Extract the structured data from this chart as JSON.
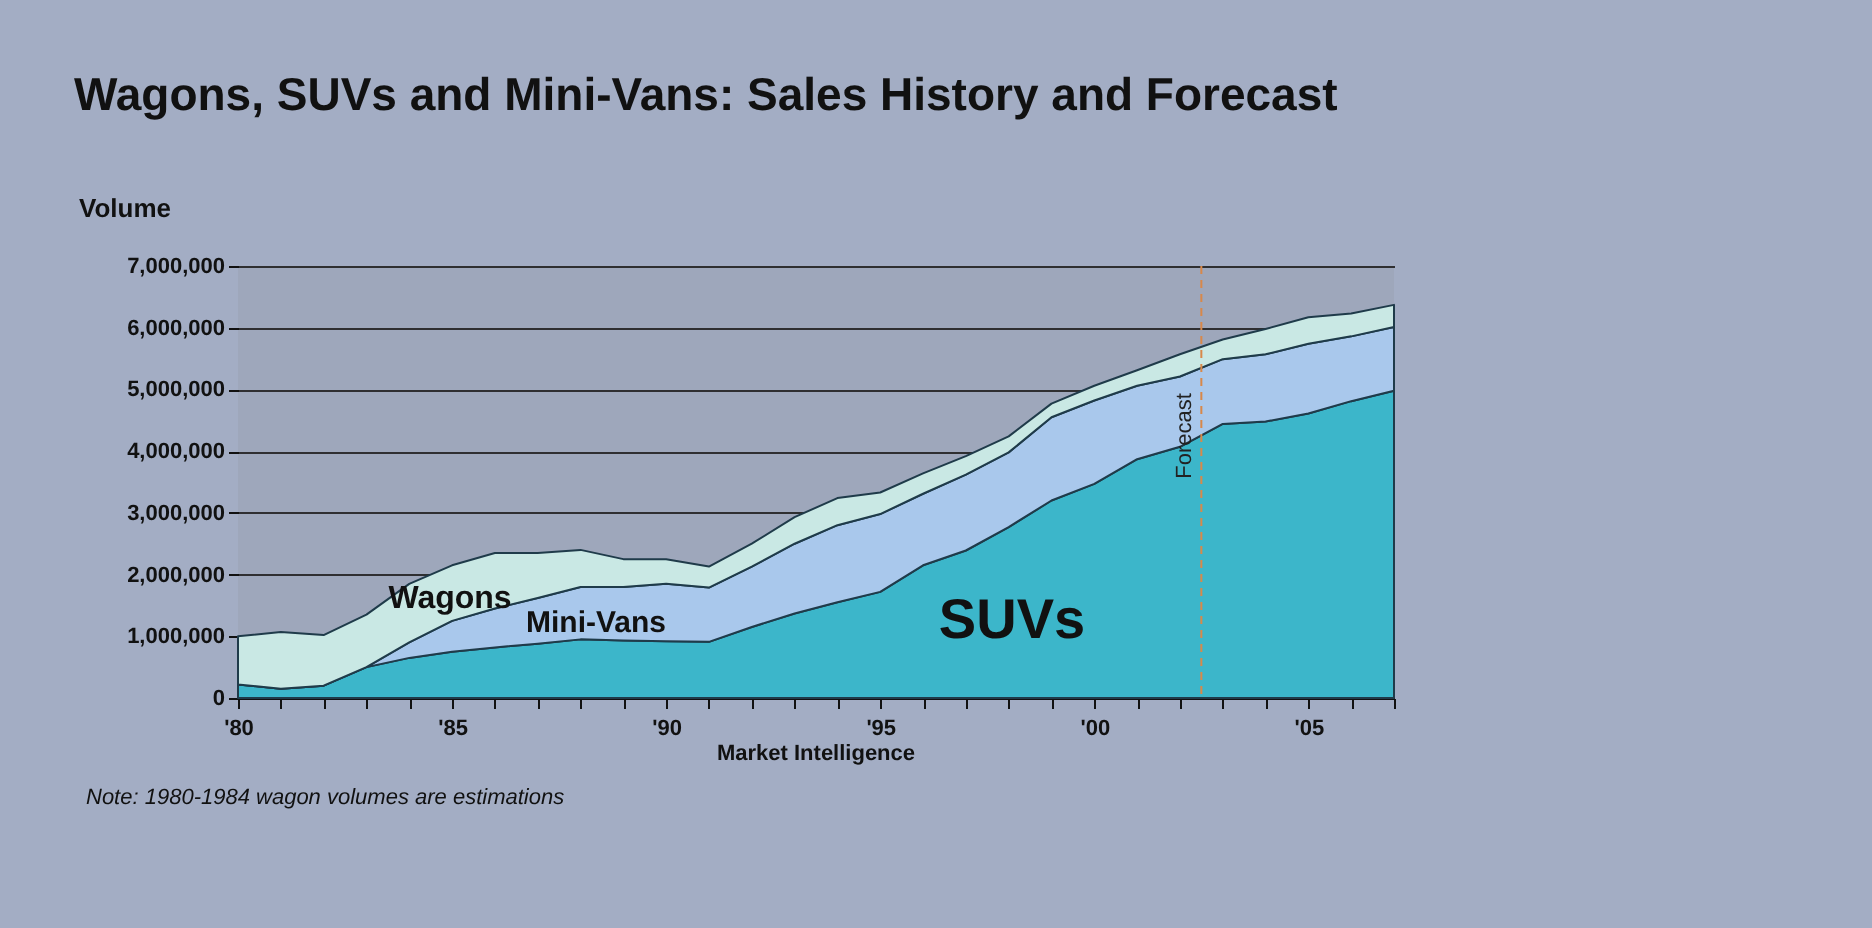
{
  "chart_data": {
    "type": "area",
    "stacked": true,
    "title": "Wagons, SUVs and Mini-Vans: Sales History and Forecast",
    "ylabel": "Volume",
    "x": [
      1980,
      1981,
      1982,
      1983,
      1984,
      1985,
      1986,
      1987,
      1988,
      1989,
      1990,
      1991,
      1992,
      1993,
      1994,
      1995,
      1996,
      1997,
      1998,
      1999,
      2000,
      2001,
      2002,
      2003,
      2004,
      2005,
      2006,
      2007
    ],
    "series": [
      {
        "name": "SUVs",
        "color": "#3cb6ca",
        "values": [
          220000,
          150000,
          200000,
          500000,
          650000,
          750000,
          820000,
          880000,
          950000,
          930000,
          920000,
          910000,
          1150000,
          1370000,
          1550000,
          1720000,
          2150000,
          2390000,
          2770000,
          3200000,
          3470000,
          3870000,
          4070000,
          4440000,
          4480000,
          4610000,
          4810000,
          4980000
        ]
      },
      {
        "name": "Mini-Vans",
        "color": "#a9c8ec",
        "values": [
          0,
          0,
          0,
          0,
          250000,
          500000,
          630000,
          740000,
          850000,
          870000,
          930000,
          880000,
          980000,
          1130000,
          1250000,
          1260000,
          1160000,
          1230000,
          1210000,
          1350000,
          1350000,
          1190000,
          1140000,
          1050000,
          1090000,
          1130000,
          1050000,
          1030000
        ]
      },
      {
        "name": "Wagons",
        "color": "#c9e8e4",
        "values": [
          780000,
          920000,
          820000,
          850000,
          950000,
          900000,
          900000,
          730000,
          600000,
          450000,
          400000,
          340000,
          370000,
          430000,
          440000,
          350000,
          330000,
          300000,
          260000,
          220000,
          240000,
          250000,
          360000,
          320000,
          410000,
          430000,
          370000,
          360000
        ]
      }
    ],
    "xlim": [
      1980,
      2007
    ],
    "xticks": [
      {
        "value": 1980,
        "label": "'80"
      },
      {
        "value": 1981,
        "label": null
      },
      {
        "value": 1982,
        "label": null
      },
      {
        "value": 1983,
        "label": null
      },
      {
        "value": 1984,
        "label": null
      },
      {
        "value": 1985,
        "label": "'85"
      },
      {
        "value": 1986,
        "label": null
      },
      {
        "value": 1987,
        "label": null
      },
      {
        "value": 1988,
        "label": null
      },
      {
        "value": 1989,
        "label": null
      },
      {
        "value": 1990,
        "label": "'90"
      },
      {
        "value": 1991,
        "label": null
      },
      {
        "value": 1992,
        "label": null
      },
      {
        "value": 1993,
        "label": null
      },
      {
        "value": 1994,
        "label": null
      },
      {
        "value": 1995,
        "label": "'95"
      },
      {
        "value": 1996,
        "label": null
      },
      {
        "value": 1997,
        "label": null
      },
      {
        "value": 1998,
        "label": null
      },
      {
        "value": 1999,
        "label": null
      },
      {
        "value": 2000,
        "label": "'00"
      },
      {
        "value": 2001,
        "label": null
      },
      {
        "value": 2002,
        "label": null
      },
      {
        "value": 2003,
        "label": null
      },
      {
        "value": 2004,
        "label": null
      },
      {
        "value": 2005,
        "label": "'05"
      },
      {
        "value": 2006,
        "label": null
      },
      {
        "value": 2007,
        "label": null
      }
    ],
    "ylim": [
      0,
      7000000
    ],
    "yticks": [
      0,
      {
        "value": 1000000,
        "label": "1,000,000"
      },
      {
        "value": 2000000,
        "label": "2,000,000"
      },
      {
        "value": 3000000,
        "label": "3,000,000"
      },
      {
        "value": 4000000,
        "label": "4,000,000"
      },
      {
        "value": 5000000,
        "label": "5,000,000"
      },
      {
        "value": 6000000,
        "label": "6,000,000"
      },
      {
        "value": 7000000,
        "label": "7,000,000"
      }
    ],
    "grid": "y",
    "legend": false,
    "ref_lines": [
      {
        "axis": "x",
        "value": 2002.5,
        "label": "Forecast",
        "color": "#d8884a",
        "line_style": "dashed"
      }
    ],
    "annotations": [
      "Market Intelligence",
      "Note: 1980-1984 wagon volumes are estimations"
    ]
  }
}
